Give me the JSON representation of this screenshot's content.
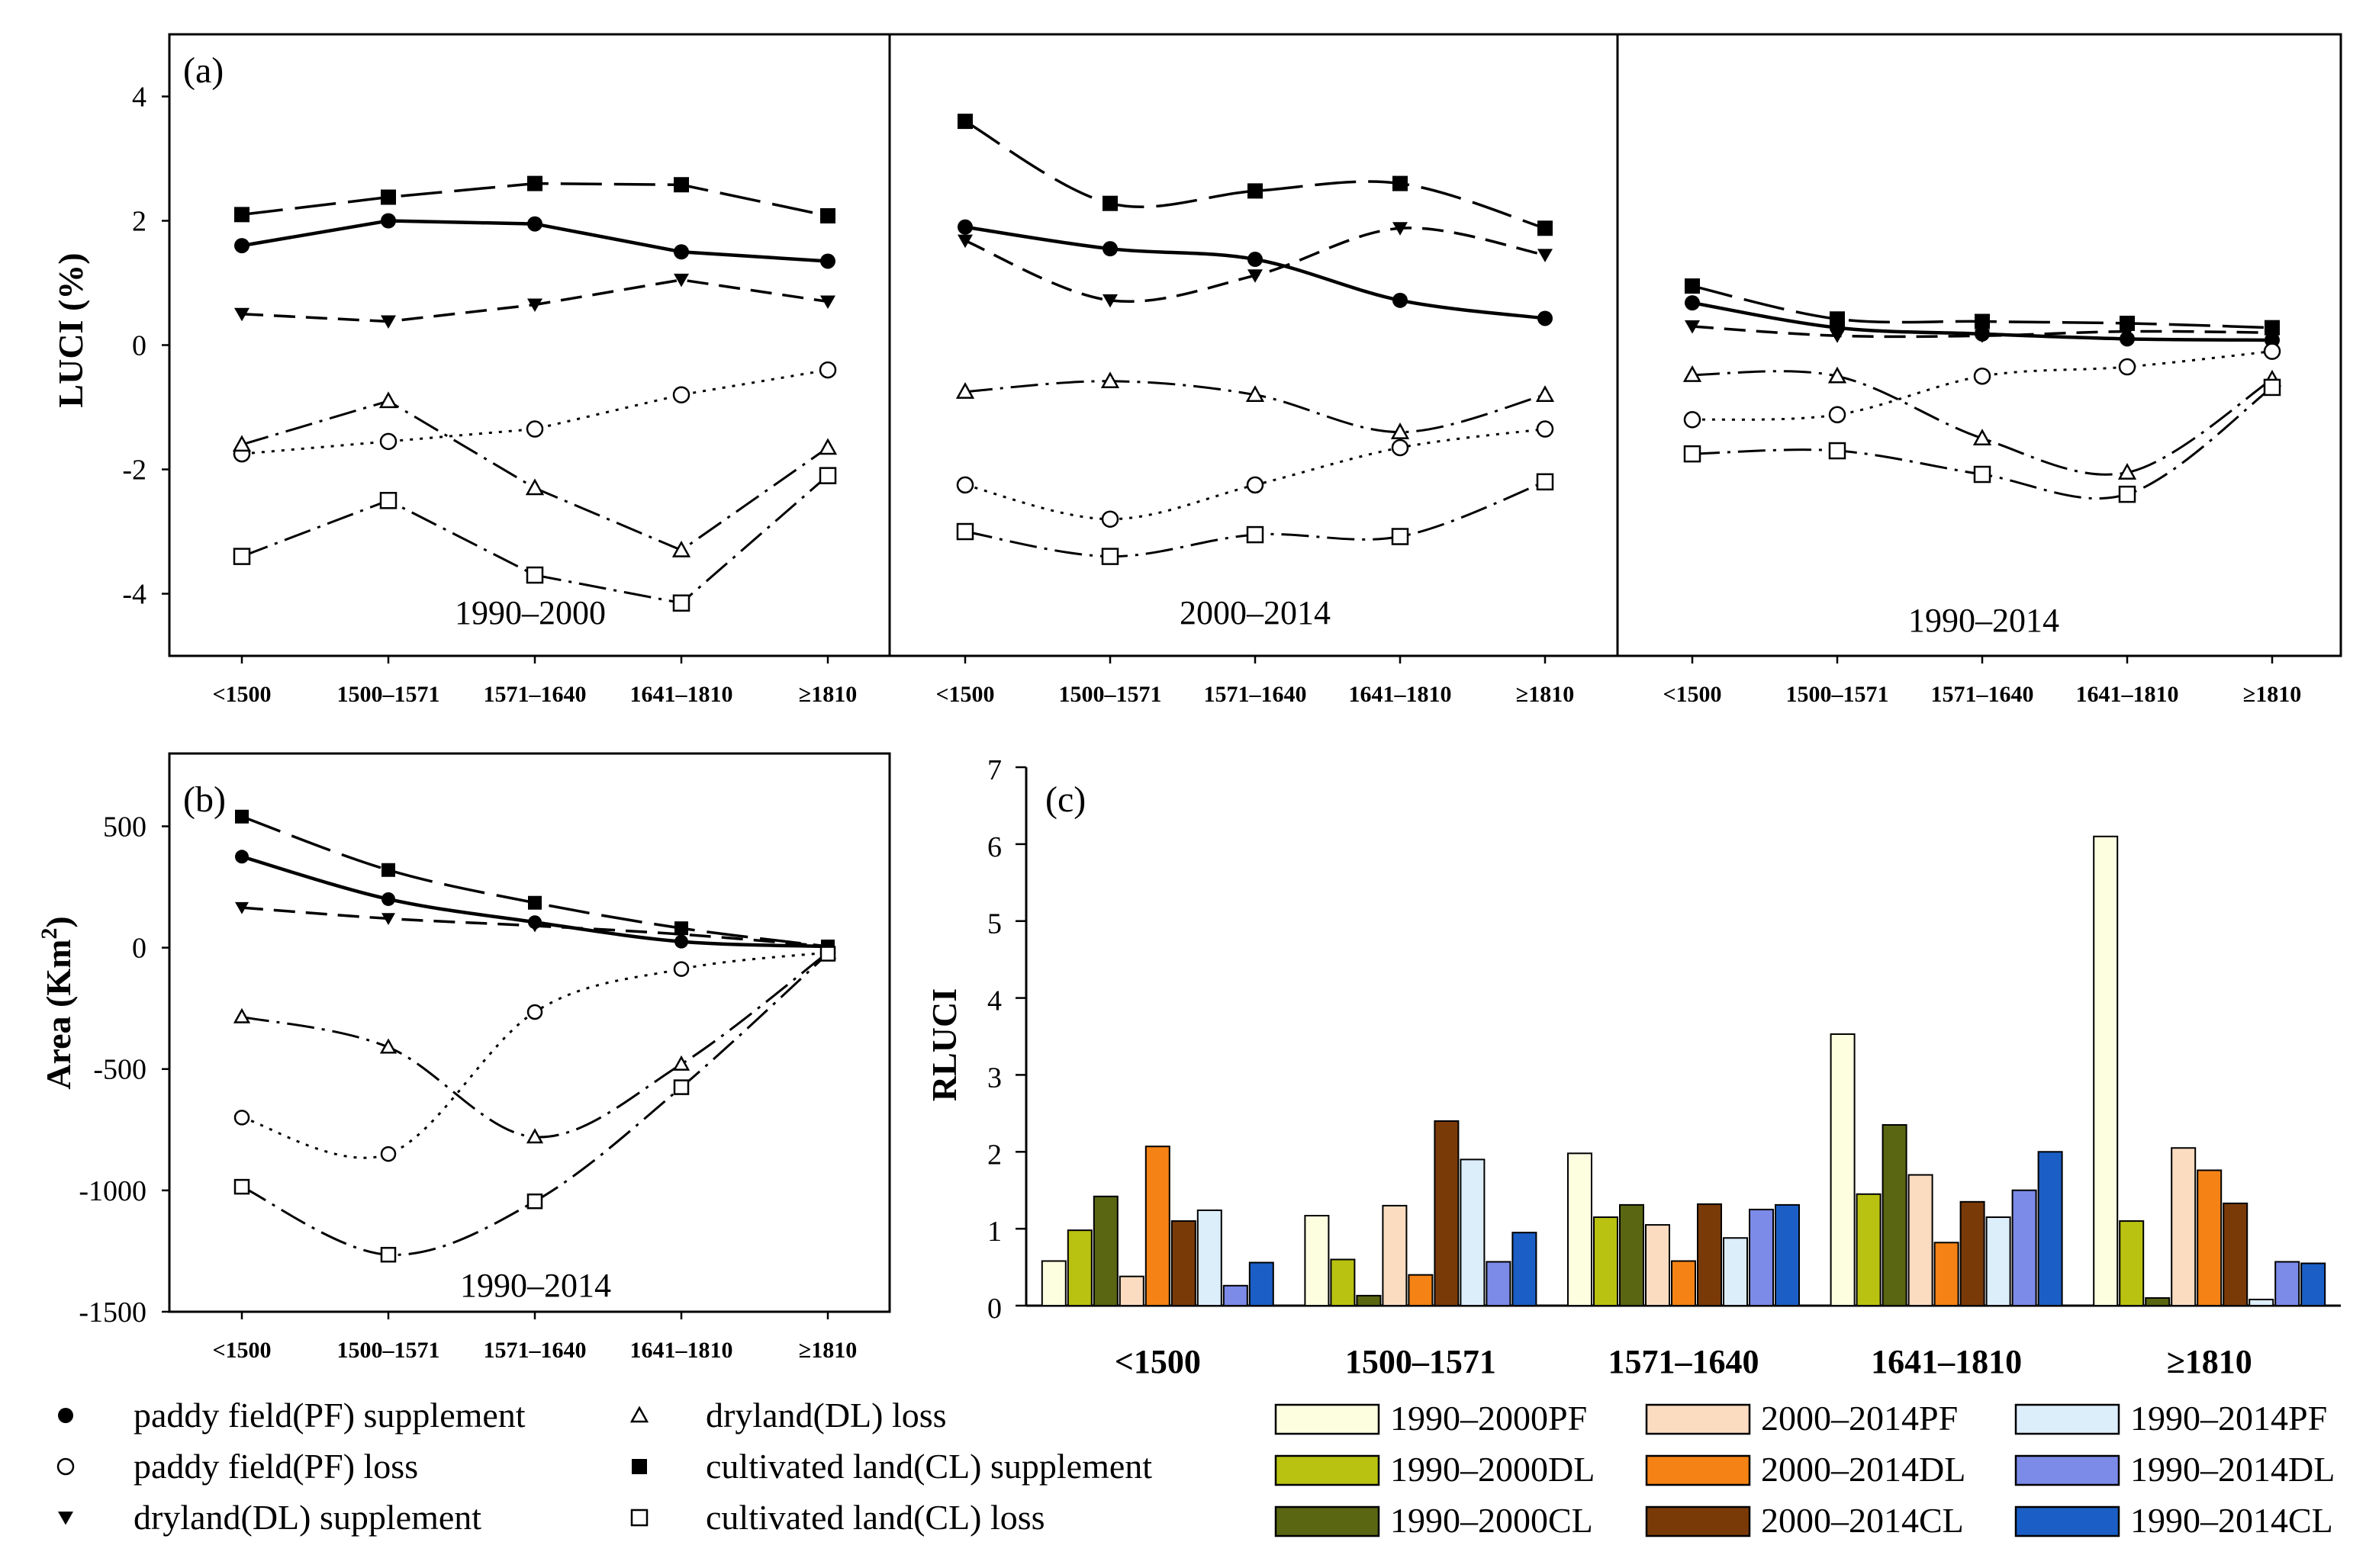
{
  "chart_data": [
    {
      "type": "line",
      "panel": "(a)",
      "ylabel": "LUCI (%)",
      "ylim": [
        -5,
        5
      ],
      "yticks": [
        4,
        2,
        0,
        -2,
        -4
      ],
      "categories": [
        "<1500",
        "1500–1571",
        "1571–1640",
        "1641–1810",
        "≥1810"
      ],
      "subpanels": [
        {
          "period": "1990–2000",
          "series": [
            {
              "name": "paddy field(PF) supplement",
              "values": [
                1.6,
                2.0,
                1.95,
                1.5,
                1.35
              ]
            },
            {
              "name": "paddy field(PF) loss",
              "values": [
                -1.75,
                -1.55,
                -1.35,
                -0.8,
                -0.4
              ]
            },
            {
              "name": "dryland(DL) supplement",
              "values": [
                0.5,
                0.38,
                0.65,
                1.05,
                0.7
              ]
            },
            {
              "name": "dryland(DL) loss",
              "values": [
                -1.6,
                -0.9,
                -2.3,
                -3.3,
                -1.65
              ]
            },
            {
              "name": "cultivated land(CL) supplement",
              "values": [
                2.1,
                2.38,
                2.6,
                2.58,
                2.08
              ]
            },
            {
              "name": "cultivated land(CL) loss",
              "values": [
                -3.4,
                -2.5,
                -3.7,
                -4.15,
                -2.1
              ]
            }
          ]
        },
        {
          "period": "2000–2014",
          "series": [
            {
              "name": "paddy field(PF) supplement",
              "values": [
                1.9,
                1.55,
                1.38,
                0.72,
                0.43
              ]
            },
            {
              "name": "paddy field(PF) loss",
              "values": [
                -2.25,
                -2.8,
                -2.25,
                -1.65,
                -1.35
              ]
            },
            {
              "name": "dryland(DL) supplement",
              "values": [
                1.68,
                0.72,
                1.12,
                1.88,
                1.45
              ]
            },
            {
              "name": "dryland(DL) loss",
              "values": [
                -0.75,
                -0.58,
                -0.8,
                -1.4,
                -0.8
              ]
            },
            {
              "name": "cultivated land(CL) supplement",
              "values": [
                3.6,
                2.28,
                2.48,
                2.6,
                1.88
              ]
            },
            {
              "name": "cultivated land(CL) loss",
              "values": [
                -3.0,
                -3.4,
                -3.05,
                -3.08,
                -2.2
              ]
            }
          ]
        },
        {
          "period": "1990–2014",
          "series": [
            {
              "name": "paddy field(PF) supplement",
              "values": [
                0.68,
                0.28,
                0.18,
                0.1,
                0.08
              ]
            },
            {
              "name": "paddy field(PF) loss",
              "values": [
                -1.2,
                -1.12,
                -0.5,
                -0.35,
                -0.1
              ]
            },
            {
              "name": "dryland(DL) supplement",
              "values": [
                0.3,
                0.15,
                0.15,
                0.22,
                0.2
              ]
            },
            {
              "name": "dryland(DL) loss",
              "values": [
                -0.48,
                -0.5,
                -1.5,
                -2.05,
                -0.55
              ]
            },
            {
              "name": "cultivated land(CL) supplement",
              "values": [
                0.95,
                0.42,
                0.38,
                0.35,
                0.28
              ]
            },
            {
              "name": "cultivated land(CL) loss",
              "values": [
                -1.75,
                -1.7,
                -2.08,
                -2.4,
                -0.68
              ]
            }
          ]
        }
      ]
    },
    {
      "type": "line",
      "panel": "(b)",
      "period": "1990–2014",
      "ylabel_main": "Area",
      "ylabel_unit": "(Km",
      "ylabel_sup": "2",
      "ylabel_close": ")",
      "ylim": [
        -1500,
        800
      ],
      "yticks": [
        500,
        0,
        -500,
        -1000,
        -1500
      ],
      "categories": [
        "<1500",
        "1500–1571",
        "1571–1640",
        "1641–1810",
        "≥1810"
      ],
      "series": [
        {
          "name": "paddy field(PF) supplement",
          "values": [
            375,
            200,
            105,
            25,
            5
          ]
        },
        {
          "name": "paddy field(PF) loss",
          "values": [
            -700,
            -850,
            -265,
            -88,
            -20
          ]
        },
        {
          "name": "dryland(DL) supplement",
          "values": [
            165,
            120,
            90,
            55,
            5
          ]
        },
        {
          "name": "dryland(DL) loss",
          "values": [
            -285,
            -410,
            -780,
            -480,
            -20
          ]
        },
        {
          "name": "cultivated land(CL) supplement",
          "values": [
            540,
            320,
            185,
            80,
            5
          ]
        },
        {
          "name": "cultivated land(CL) loss",
          "values": [
            -985,
            -1265,
            -1045,
            -575,
            -25
          ]
        }
      ]
    },
    {
      "type": "bar",
      "panel": "(c)",
      "ylabel": "RLUCI",
      "ylim": [
        0,
        7
      ],
      "yticks": [
        0,
        1,
        2,
        3,
        4,
        5,
        6,
        7
      ],
      "categories": [
        "<1500",
        "1500–1571",
        "1571–1640",
        "1641–1810",
        "≥1810"
      ],
      "series": [
        {
          "name": "1990–2000PF",
          "color": "#fdfde0",
          "values": [
            0.58,
            1.17,
            1.98,
            3.53,
            6.1
          ]
        },
        {
          "name": "1990–2000DL",
          "color": "#b9c210",
          "values": [
            0.98,
            0.6,
            1.15,
            1.45,
            1.1
          ]
        },
        {
          "name": "1990–2000CL",
          "color": "#5a6612",
          "values": [
            1.42,
            0.13,
            1.31,
            2.35,
            0.1
          ]
        },
        {
          "name": "2000–2014PF",
          "color": "#fbdcc0",
          "values": [
            0.38,
            1.3,
            1.05,
            1.7,
            2.05
          ]
        },
        {
          "name": "2000–2014DL",
          "color": "#f58214",
          "values": [
            2.07,
            0.4,
            0.58,
            0.82,
            1.76
          ]
        },
        {
          "name": "2000–2014CL",
          "color": "#7a3a08",
          "values": [
            1.1,
            2.4,
            1.32,
            1.35,
            1.33
          ]
        },
        {
          "name": "1990–2014PF",
          "color": "#ddeefb",
          "values": [
            1.24,
            1.9,
            0.88,
            1.15,
            0.08
          ]
        },
        {
          "name": "1990–2014DL",
          "color": "#7c8ae8",
          "values": [
            0.26,
            0.57,
            1.25,
            1.5,
            0.57
          ]
        },
        {
          "name": "1990–2014CL",
          "color": "#1b5fc6",
          "values": [
            0.56,
            0.95,
            1.31,
            2.0,
            0.55
          ]
        }
      ]
    }
  ],
  "legend_lines": [
    {
      "marker": "filled-circle",
      "dash": "solid",
      "label": "paddy field(PF) supplement"
    },
    {
      "marker": "open-circle",
      "dash": "dotted",
      "label": "paddy field(PF) loss"
    },
    {
      "marker": "filled-triangle-down",
      "dash": "dash",
      "label": "dryland(DL) supplement"
    },
    {
      "marker": "open-triangle",
      "dash": "dash-dot",
      "label": "dryland(DL) loss"
    },
    {
      "marker": "filled-square",
      "dash": "long-dash",
      "label": "cultivated land(CL) supplement"
    },
    {
      "marker": "open-square",
      "dash": "dash-dot",
      "label": "cultivated land(CL) loss"
    }
  ]
}
